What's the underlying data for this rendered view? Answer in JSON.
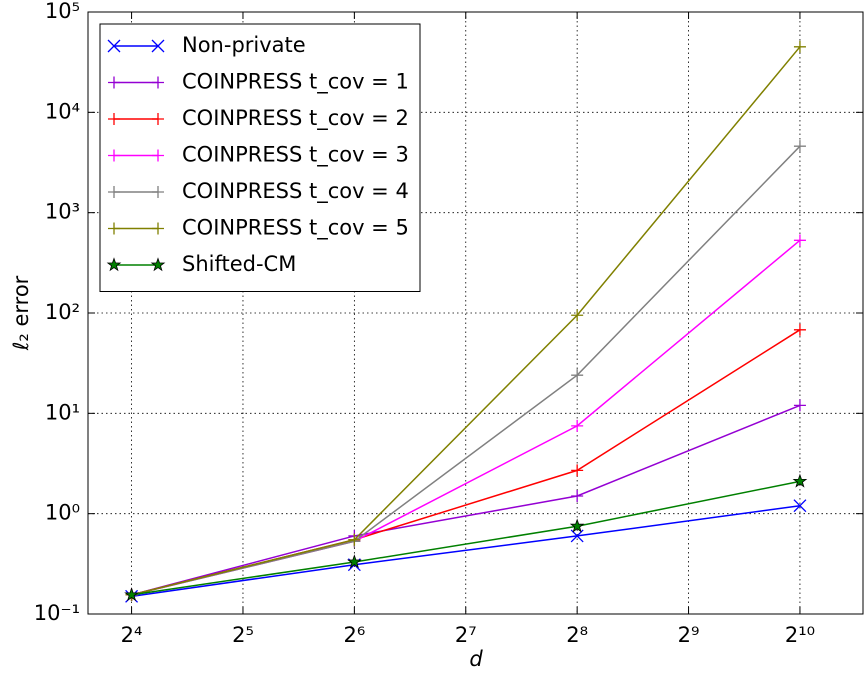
{
  "chart_data": {
    "type": "line",
    "xlabel": "d",
    "ylabel": "ℓ₂ error",
    "x": [
      16,
      64,
      256,
      1024
    ],
    "xscale": "log2",
    "yscale": "log10",
    "xlim": [
      12.2,
      1516
    ],
    "ylim": [
      0.1,
      100000
    ],
    "xticks": [
      {
        "value": 16,
        "label": "2⁴"
      },
      {
        "value": 32,
        "label": "2⁵"
      },
      {
        "value": 64,
        "label": "2⁶"
      },
      {
        "value": 128,
        "label": "2⁷"
      },
      {
        "value": 256,
        "label": "2⁸"
      },
      {
        "value": 512,
        "label": "2⁹"
      },
      {
        "value": 1024,
        "label": "2¹⁰"
      }
    ],
    "yticks": [
      {
        "value": 0.1,
        "label": "10⁻¹"
      },
      {
        "value": 1,
        "label": "10⁰"
      },
      {
        "value": 10,
        "label": "10¹"
      },
      {
        "value": 100,
        "label": "10²"
      },
      {
        "value": 1000,
        "label": "10³"
      },
      {
        "value": 10000,
        "label": "10⁴"
      },
      {
        "value": 100000,
        "label": "10⁵"
      }
    ],
    "grid": true,
    "legend": "upper left",
    "series": [
      {
        "name": "Non-private",
        "color": "#0000ff",
        "marker": "x",
        "values": [
          0.15,
          0.31,
          0.6,
          1.2
        ]
      },
      {
        "name": "COINPRESS t_cov = 1",
        "color": "#9400d3",
        "marker": "+",
        "values": [
          0.155,
          0.6,
          1.5,
          12
        ]
      },
      {
        "name": "COINPRESS t_cov = 2",
        "color": "#ff0000",
        "marker": "+",
        "values": [
          0.155,
          0.55,
          2.7,
          68
        ]
      },
      {
        "name": "COINPRESS t_cov = 3",
        "color": "#ff00ff",
        "marker": "+",
        "values": [
          0.155,
          0.53,
          7.5,
          530
        ]
      },
      {
        "name": "COINPRESS t_cov = 4",
        "color": "#808080",
        "marker": "+",
        "values": [
          0.155,
          0.53,
          24,
          4600
        ]
      },
      {
        "name": "COINPRESS t_cov = 5",
        "color": "#808000",
        "marker": "+",
        "values": [
          0.155,
          0.55,
          95,
          45000
        ]
      },
      {
        "name": "Shifted-CM",
        "color": "#008000",
        "marker": "*",
        "values": [
          0.155,
          0.33,
          0.75,
          2.1
        ]
      }
    ]
  }
}
